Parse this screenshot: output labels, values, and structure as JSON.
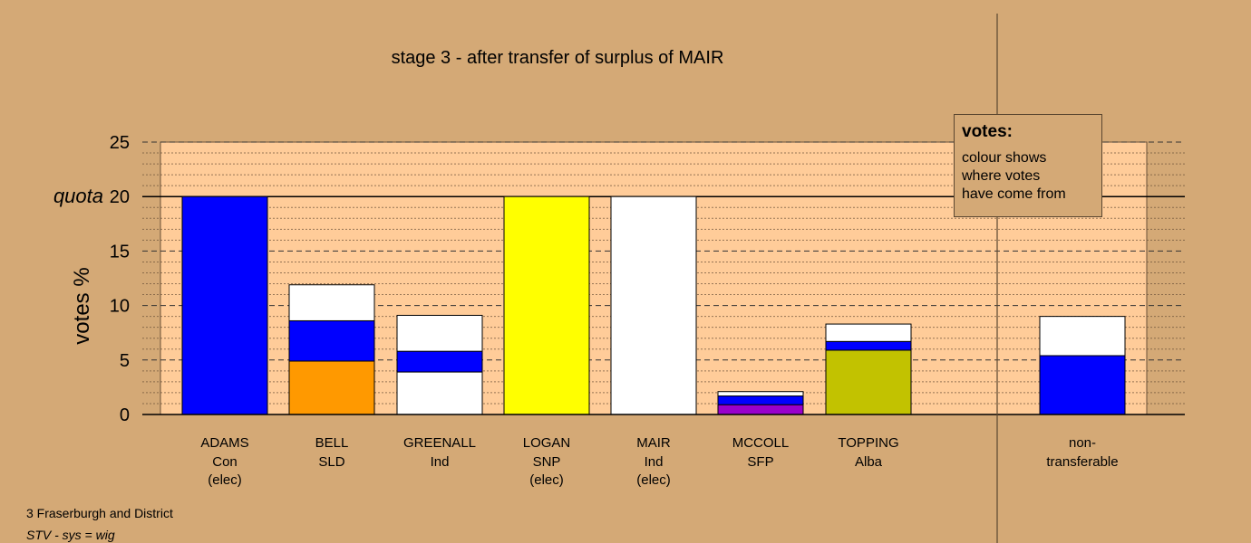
{
  "chart_data": {
    "type": "bar",
    "stacked": true,
    "title": "stage 3 - after transfer of surplus of MAIR",
    "ylabel": "votes %",
    "ylim": [
      0,
      25
    ],
    "yticks": [
      0,
      5,
      10,
      15,
      20,
      25
    ],
    "quota": {
      "label": "quota",
      "value": 20
    },
    "grid": true,
    "categories": [
      {
        "name": "ADAMS",
        "party": "Con",
        "status": "(elec)",
        "segments": [
          {
            "value": 20,
            "color": "#0000ff"
          }
        ]
      },
      {
        "name": "BELL",
        "party": "SLD",
        "status": "",
        "segments": [
          {
            "value": 4.9,
            "color": "#ff9900"
          },
          {
            "value": 3.7,
            "color": "#0000ff"
          },
          {
            "value": 3.3,
            "color": "#ffffff"
          }
        ]
      },
      {
        "name": "GREENALL",
        "party": "Ind",
        "status": "",
        "segments": [
          {
            "value": 3.9,
            "color": "#ffffff"
          },
          {
            "value": 1.9,
            "color": "#0000ff"
          },
          {
            "value": 3.3,
            "color": "#ffffff"
          }
        ]
      },
      {
        "name": "LOGAN",
        "party": "SNP",
        "status": "(elec)",
        "segments": [
          {
            "value": 20,
            "color": "#ffff00"
          }
        ]
      },
      {
        "name": "MAIR",
        "party": "Ind",
        "status": "(elec)",
        "segments": [
          {
            "value": 20,
            "color": "#ffffff"
          }
        ]
      },
      {
        "name": "MCCOLL",
        "party": "SFP",
        "status": "",
        "segments": [
          {
            "value": 0.9,
            "color": "#9900cc"
          },
          {
            "value": 0.8,
            "color": "#0000ff"
          },
          {
            "value": 0.4,
            "color": "#ffffff"
          }
        ]
      },
      {
        "name": "TOPPING",
        "party": "Alba",
        "status": "",
        "segments": [
          {
            "value": 5.9,
            "color": "#c2c200"
          },
          {
            "value": 0.8,
            "color": "#0000ff"
          },
          {
            "value": 1.6,
            "color": "#ffffff"
          }
        ]
      }
    ],
    "nontransferable": {
      "label_line1": "non-",
      "label_line2": "transferable",
      "segments": [
        {
          "value": 5.4,
          "color": "#0000ff"
        },
        {
          "value": 3.6,
          "color": "#ffffff"
        }
      ]
    }
  },
  "legend": {
    "heading": "votes:",
    "line1": "colour shows",
    "line2": "where votes",
    "line3": "have come from"
  },
  "footer": {
    "area": "3 Fraserburgh and District",
    "system": "STV - sys = wig"
  }
}
